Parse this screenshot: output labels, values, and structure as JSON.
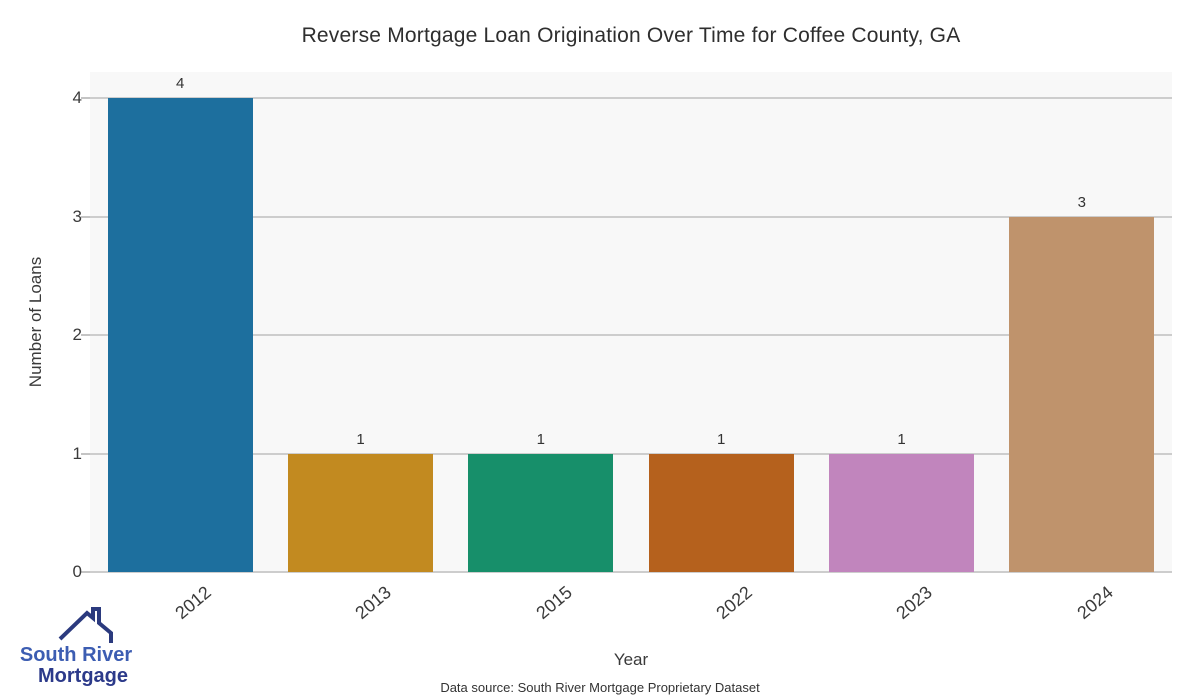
{
  "chart_data": {
    "type": "bar",
    "title": "Reverse Mortgage Loan Origination Over Time for Coffee County, GA",
    "categories": [
      "2012",
      "2013",
      "2015",
      "2022",
      "2023",
      "2024"
    ],
    "values": [
      4,
      1,
      1,
      1,
      1,
      3
    ],
    "bar_colors": [
      "#1d6f9e",
      "#c28a20",
      "#178f6a",
      "#b5611d",
      "#c185bd",
      "#bf936c"
    ],
    "xlabel": "Year",
    "ylabel": "Number of Loans",
    "ylim": [
      0,
      4
    ],
    "yticks": [
      0,
      1,
      2,
      3,
      4
    ],
    "grid": true,
    "legend": "none",
    "plot_background": "#f8f8f8",
    "gridline_color": "#cdcdcd",
    "tick_color": "#c4c4c4"
  },
  "footer": {
    "data_source": "Data source: South River Mortgage Proprietary Dataset"
  },
  "logo": {
    "line1": "South River",
    "line2": "Mortgage",
    "line1_color": "#3c5db2",
    "line2_color": "#2c3a8a",
    "roof_color": "#2b3a7e"
  }
}
